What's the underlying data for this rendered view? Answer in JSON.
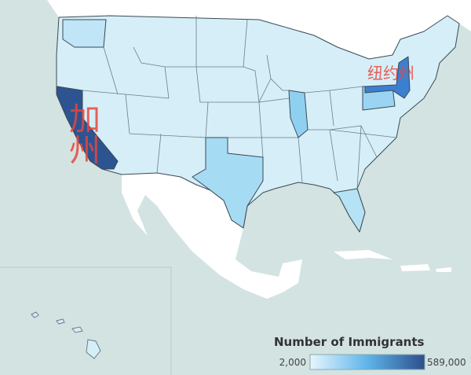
{
  "map": {
    "annotations": [
      "加州",
      "纽约州"
    ],
    "legend": {
      "title": "Number of Immigrants",
      "min": {
        "value": 2000,
        "label": "2,000"
      },
      "max": {
        "value": 589000,
        "label": "589,000"
      }
    }
  }
}
